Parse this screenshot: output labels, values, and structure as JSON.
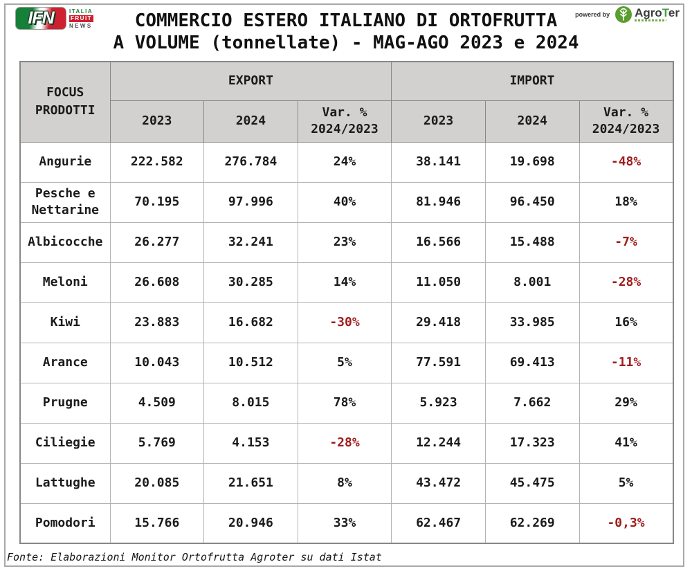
{
  "banner": {
    "ifn_logo": {
      "acronym": "IFN",
      "word1": "ITALIA",
      "word2": "FRUIT",
      "word3": "NEWS"
    },
    "title_line1": "COMMERCIO ESTERO ITALIANO DI ORTOFRUTTA",
    "title_line2": "A VOLUME (tonnellate) - MAG-AGO 2023 e 2024",
    "powered_by": "powered by",
    "agroter_part1": "Agro",
    "agroter_part2": "T",
    "agroter_part3": "er"
  },
  "table": {
    "corner_header": "FOCUS PRODOTTI",
    "group_headers": [
      "EXPORT",
      "IMPORT"
    ],
    "sub_headers": [
      "2023",
      "2024",
      "Var. %\n2024/2023",
      "2023",
      "2024",
      "Var. %\n2024/2023"
    ],
    "rows": [
      [
        "Angurie",
        "222.582",
        "276.784",
        "24%",
        "38.141",
        "19.698",
        "-48%"
      ],
      [
        "Pesche e Nettarine",
        "70.195",
        "97.996",
        "40%",
        "81.946",
        "96.450",
        "18%"
      ],
      [
        "Albicocche",
        "26.277",
        "32.241",
        "23%",
        "16.566",
        "15.488",
        "-7%"
      ],
      [
        "Meloni",
        "26.608",
        "30.285",
        "14%",
        "11.050",
        "8.001",
        "-28%"
      ],
      [
        "Kiwi",
        "23.883",
        "16.682",
        "-30%",
        "29.418",
        "33.985",
        "16%"
      ],
      [
        "Arance",
        "10.043",
        "10.512",
        "5%",
        "77.591",
        "69.413",
        "-11%"
      ],
      [
        "Prugne",
        "4.509",
        "8.015",
        "78%",
        "5.923",
        "7.662",
        "29%"
      ],
      [
        "Ciliegie",
        "5.769",
        "4.153",
        "-28%",
        "12.244",
        "17.323",
        "41%"
      ],
      [
        "Lattughe",
        "20.085",
        "21.651",
        "8%",
        "43.472",
        "45.475",
        "5%"
      ],
      [
        "Pomodori",
        "15.766",
        "20.946",
        "33%",
        "62.467",
        "62.269",
        "-0,3%"
      ]
    ]
  },
  "footer": {
    "text": "Fonte: Elaborazioni Monitor Ortofrutta Agroter su dati Istat"
  },
  "colors": {
    "header_bg": "#d3d0d0",
    "negative_value": "#a01d1d",
    "text": "#1b1b1b",
    "logo_green": "#168038",
    "logo_red": "#cf2030",
    "agroter_green": "#5a9e2f"
  },
  "chart_data": {
    "type": "table",
    "title": "COMMERCIO ESTERO ITALIANO DI ORTOFRUTTA A VOLUME (tonnellate) - MAG-AGO 2023 e 2024",
    "column_groups": [
      "EXPORT",
      "IMPORT"
    ],
    "columns": [
      "FOCUS PRODOTTI",
      "EXPORT 2023",
      "EXPORT 2024",
      "EXPORT Var. % 2024/2023",
      "IMPORT 2023",
      "IMPORT 2024",
      "IMPORT Var. % 2024/2023"
    ],
    "unit": "tonnellate",
    "rows": [
      {
        "product": "Angurie",
        "export_2023": 222582,
        "export_2024": 276784,
        "export_var_pct": 24,
        "import_2023": 38141,
        "import_2024": 19698,
        "import_var_pct": -48
      },
      {
        "product": "Pesche e Nettarine",
        "export_2023": 70195,
        "export_2024": 97996,
        "export_var_pct": 40,
        "import_2023": 81946,
        "import_2024": 96450,
        "import_var_pct": 18
      },
      {
        "product": "Albicocche",
        "export_2023": 26277,
        "export_2024": 32241,
        "export_var_pct": 23,
        "import_2023": 16566,
        "import_2024": 15488,
        "import_var_pct": -7
      },
      {
        "product": "Meloni",
        "export_2023": 26608,
        "export_2024": 30285,
        "export_var_pct": 14,
        "import_2023": 11050,
        "import_2024": 8001,
        "import_var_pct": -28
      },
      {
        "product": "Kiwi",
        "export_2023": 23883,
        "export_2024": 16682,
        "export_var_pct": -30,
        "import_2023": 29418,
        "import_2024": 33985,
        "import_var_pct": 16
      },
      {
        "product": "Arance",
        "export_2023": 10043,
        "export_2024": 10512,
        "export_var_pct": 5,
        "import_2023": 77591,
        "import_2024": 69413,
        "import_var_pct": -11
      },
      {
        "product": "Prugne",
        "export_2023": 4509,
        "export_2024": 8015,
        "export_var_pct": 78,
        "import_2023": 5923,
        "import_2024": 7662,
        "import_var_pct": 29
      },
      {
        "product": "Ciliegie",
        "export_2023": 5769,
        "export_2024": 4153,
        "export_var_pct": -28,
        "import_2023": 12244,
        "import_2024": 17323,
        "import_var_pct": 41
      },
      {
        "product": "Lattughe",
        "export_2023": 20085,
        "export_2024": 21651,
        "export_var_pct": 8,
        "import_2023": 43472,
        "import_2024": 45475,
        "import_var_pct": 5
      },
      {
        "product": "Pomodori",
        "export_2023": 15766,
        "export_2024": 20946,
        "export_var_pct": 33,
        "import_2023": 62467,
        "import_2024": 62269,
        "import_var_pct": -0.3
      }
    ],
    "source": "Fonte: Elaborazioni Monitor Ortofrutta Agroter su dati Istat"
  }
}
